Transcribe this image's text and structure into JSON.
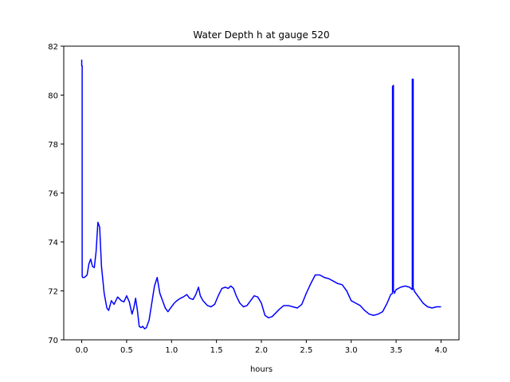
{
  "chart_data": {
    "type": "line",
    "title": "Water Depth h at gauge 520",
    "xlabel": "hours",
    "ylabel": "",
    "xlim": [
      -0.2,
      4.2
    ],
    "ylim": [
      70,
      82
    ],
    "xticks": [
      0.0,
      0.5,
      1.0,
      1.5,
      2.0,
      2.5,
      3.0,
      3.5,
      4.0
    ],
    "xtick_labels": [
      "0.0",
      "0.5",
      "1.0",
      "1.5",
      "2.0",
      "2.5",
      "3.0",
      "3.5",
      "4.0"
    ],
    "yticks": [
      70,
      72,
      74,
      76,
      78,
      80,
      82
    ],
    "ytick_labels": [
      "70",
      "72",
      "74",
      "76",
      "78",
      "80",
      "82"
    ],
    "grid": false,
    "series": [
      {
        "color": "#0000ff",
        "x": [
          0.0,
          0.0,
          0.005,
          0.005,
          0.01,
          0.03,
          0.06,
          0.08,
          0.1,
          0.12,
          0.14,
          0.16,
          0.18,
          0.2,
          0.22,
          0.25,
          0.28,
          0.3,
          0.33,
          0.36,
          0.4,
          0.44,
          0.47,
          0.5,
          0.53,
          0.56,
          0.58,
          0.6,
          0.62,
          0.64,
          0.66,
          0.68,
          0.7,
          0.72,
          0.75,
          0.78,
          0.81,
          0.84,
          0.87,
          0.9,
          0.93,
          0.96,
          1.0,
          1.03,
          1.06,
          1.1,
          1.13,
          1.17,
          1.2,
          1.24,
          1.27,
          1.3,
          1.32,
          1.35,
          1.4,
          1.44,
          1.48,
          1.52,
          1.56,
          1.6,
          1.63,
          1.66,
          1.69,
          1.72,
          1.76,
          1.8,
          1.84,
          1.88,
          1.92,
          1.96,
          2.0,
          2.04,
          2.08,
          2.12,
          2.16,
          2.2,
          2.25,
          2.3,
          2.35,
          2.4,
          2.45,
          2.5,
          2.55,
          2.6,
          2.65,
          2.7,
          2.75,
          2.8,
          2.85,
          2.9,
          2.95,
          3.0,
          3.05,
          3.1,
          3.15,
          3.2,
          3.25,
          3.3,
          3.35,
          3.4,
          3.44,
          3.46,
          3.46,
          3.47,
          3.47,
          3.48,
          3.48,
          3.5,
          3.55,
          3.6,
          3.65,
          3.68,
          3.68,
          3.69,
          3.69,
          3.7,
          3.7,
          3.75,
          3.8,
          3.85,
          3.9,
          3.95,
          4.0
        ],
        "y": [
          81.45,
          81.2,
          81.2,
          72.6,
          72.55,
          72.55,
          72.65,
          73.1,
          73.3,
          73.0,
          72.95,
          73.6,
          74.8,
          74.6,
          73.0,
          71.9,
          71.3,
          71.2,
          71.6,
          71.45,
          71.75,
          71.6,
          71.55,
          71.8,
          71.55,
          71.05,
          71.3,
          71.7,
          71.2,
          70.55,
          70.5,
          70.55,
          70.45,
          70.5,
          70.8,
          71.5,
          72.2,
          72.55,
          71.9,
          71.6,
          71.3,
          71.15,
          71.35,
          71.5,
          71.6,
          71.7,
          71.75,
          71.85,
          71.7,
          71.65,
          71.85,
          72.15,
          71.8,
          71.6,
          71.4,
          71.35,
          71.45,
          71.8,
          72.1,
          72.15,
          72.1,
          72.2,
          72.1,
          71.8,
          71.5,
          71.35,
          71.4,
          71.6,
          71.8,
          71.75,
          71.5,
          71.0,
          70.9,
          70.95,
          71.1,
          71.25,
          71.4,
          71.4,
          71.35,
          71.3,
          71.45,
          71.9,
          72.3,
          72.65,
          72.65,
          72.55,
          72.5,
          72.4,
          72.3,
          72.25,
          72.0,
          71.6,
          71.5,
          71.4,
          71.2,
          71.05,
          71.0,
          71.05,
          71.15,
          71.5,
          71.85,
          71.9,
          80.35,
          80.4,
          72.0,
          71.95,
          71.9,
          72.05,
          72.15,
          72.2,
          72.15,
          72.05,
          80.65,
          80.65,
          72.1,
          72.05,
          72.0,
          71.75,
          71.5,
          71.35,
          71.3,
          71.35,
          71.35
        ]
      }
    ]
  }
}
